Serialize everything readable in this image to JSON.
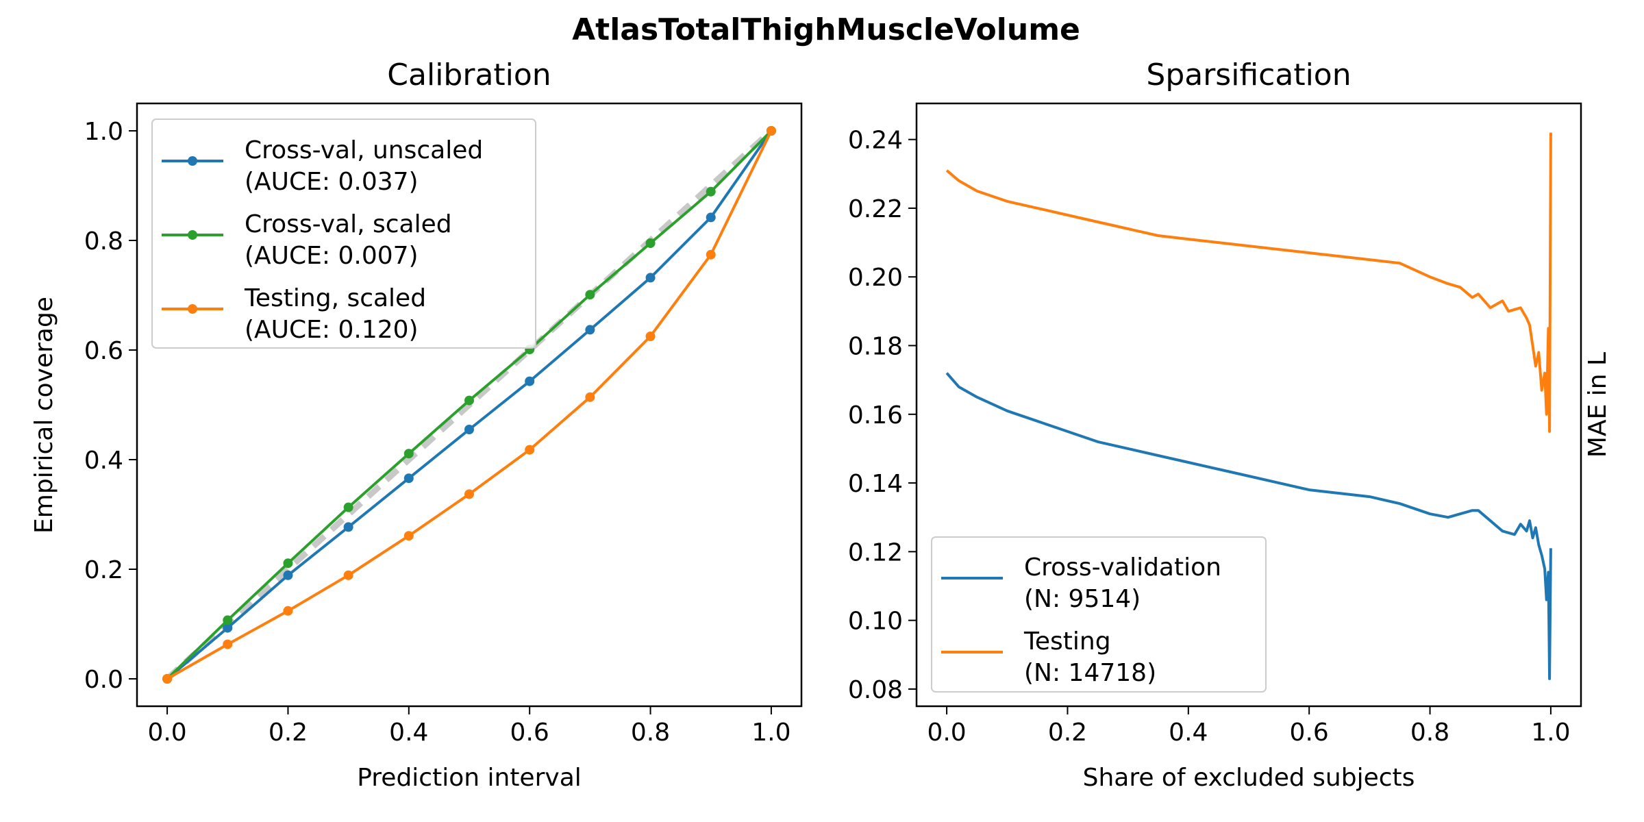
{
  "figure": {
    "suptitle": "AtlasTotalThighMuscleVolume"
  },
  "chart_data": [
    {
      "type": "line",
      "title": "Calibration",
      "xlabel": "Prediction interval",
      "ylabel": "Empirical coverage",
      "xlim": [
        -0.05,
        1.05
      ],
      "ylim": [
        -0.05,
        1.05
      ],
      "xticks": [
        "0.0",
        "0.2",
        "0.4",
        "0.6",
        "0.8",
        "1.0"
      ],
      "yticks": [
        "0.0",
        "0.2",
        "0.4",
        "0.6",
        "0.8",
        "1.0"
      ],
      "grid": false,
      "legend_position": "upper-left",
      "reference_line": {
        "x": [
          0,
          1
        ],
        "y": [
          0,
          1
        ],
        "color": "#c8c8c8",
        "style": "dashed"
      },
      "x": [
        0.0,
        0.1,
        0.2,
        0.3,
        0.4,
        0.5,
        0.6,
        0.7,
        0.8,
        0.9,
        1.0
      ],
      "series": [
        {
          "name": "Cross-val, unscaled",
          "auce": "(AUCE: 0.037)",
          "color": "#1f77b4",
          "values": [
            0.0,
            0.093,
            0.189,
            0.277,
            0.366,
            0.455,
            0.543,
            0.637,
            0.732,
            0.842,
            1.0
          ]
        },
        {
          "name": "Cross-val, scaled",
          "auce": "(AUCE: 0.007)",
          "color": "#2ca02c",
          "values": [
            0.0,
            0.107,
            0.211,
            0.313,
            0.411,
            0.508,
            0.601,
            0.701,
            0.795,
            0.889,
            1.0
          ]
        },
        {
          "name": "Testing, scaled",
          "auce": "(AUCE: 0.120)",
          "color": "#ff7f0e",
          "values": [
            0.0,
            0.063,
            0.124,
            0.189,
            0.261,
            0.337,
            0.418,
            0.514,
            0.625,
            0.774,
            1.0
          ]
        }
      ]
    },
    {
      "type": "line",
      "title": "Sparsification",
      "xlabel": "Share of excluded subjects",
      "ylabel": "MAE in L",
      "xlim": [
        -0.05,
        1.05
      ],
      "ylim": [
        0.075,
        0.2505
      ],
      "xticks": [
        "0.0",
        "0.2",
        "0.4",
        "0.6",
        "0.8",
        "1.0"
      ],
      "yticks": [
        "0.08",
        "0.10",
        "0.12",
        "0.14",
        "0.16",
        "0.18",
        "0.20",
        "0.22",
        "0.24"
      ],
      "grid": false,
      "legend_position": "lower-left",
      "series": [
        {
          "name": "Cross-validation",
          "n_label": "(N: 9514)",
          "color": "#1f77b4",
          "x": [
            0.0,
            0.02,
            0.05,
            0.1,
            0.15,
            0.2,
            0.25,
            0.3,
            0.35,
            0.4,
            0.45,
            0.5,
            0.55,
            0.6,
            0.65,
            0.7,
            0.75,
            0.8,
            0.83,
            0.85,
            0.87,
            0.88,
            0.9,
            0.92,
            0.94,
            0.95,
            0.96,
            0.965,
            0.97,
            0.975,
            0.98,
            0.985,
            0.99,
            0.993,
            0.996,
            0.998,
            1.0
          ],
          "values": [
            0.172,
            0.168,
            0.165,
            0.161,
            0.158,
            0.155,
            0.152,
            0.15,
            0.148,
            0.146,
            0.144,
            0.142,
            0.14,
            0.138,
            0.137,
            0.136,
            0.134,
            0.131,
            0.13,
            0.131,
            0.132,
            0.132,
            0.129,
            0.126,
            0.125,
            0.128,
            0.126,
            0.129,
            0.124,
            0.127,
            0.122,
            0.119,
            0.115,
            0.106,
            0.114,
            0.083,
            0.121
          ]
        },
        {
          "name": "Testing",
          "n_label": "(N: 14718)",
          "color": "#ff7f0e",
          "x": [
            0.0,
            0.02,
            0.05,
            0.1,
            0.15,
            0.2,
            0.25,
            0.3,
            0.35,
            0.4,
            0.45,
            0.5,
            0.55,
            0.6,
            0.65,
            0.7,
            0.75,
            0.8,
            0.83,
            0.85,
            0.87,
            0.88,
            0.9,
            0.92,
            0.93,
            0.95,
            0.96,
            0.965,
            0.97,
            0.975,
            0.98,
            0.985,
            0.99,
            0.993,
            0.996,
            0.998,
            1.0
          ],
          "values": [
            0.231,
            0.228,
            0.225,
            0.222,
            0.22,
            0.218,
            0.216,
            0.214,
            0.212,
            0.211,
            0.21,
            0.209,
            0.208,
            0.207,
            0.206,
            0.205,
            0.204,
            0.2,
            0.198,
            0.197,
            0.194,
            0.195,
            0.191,
            0.193,
            0.19,
            0.191,
            0.188,
            0.186,
            0.18,
            0.174,
            0.178,
            0.167,
            0.172,
            0.16,
            0.185,
            0.155,
            0.242
          ]
        }
      ]
    }
  ]
}
